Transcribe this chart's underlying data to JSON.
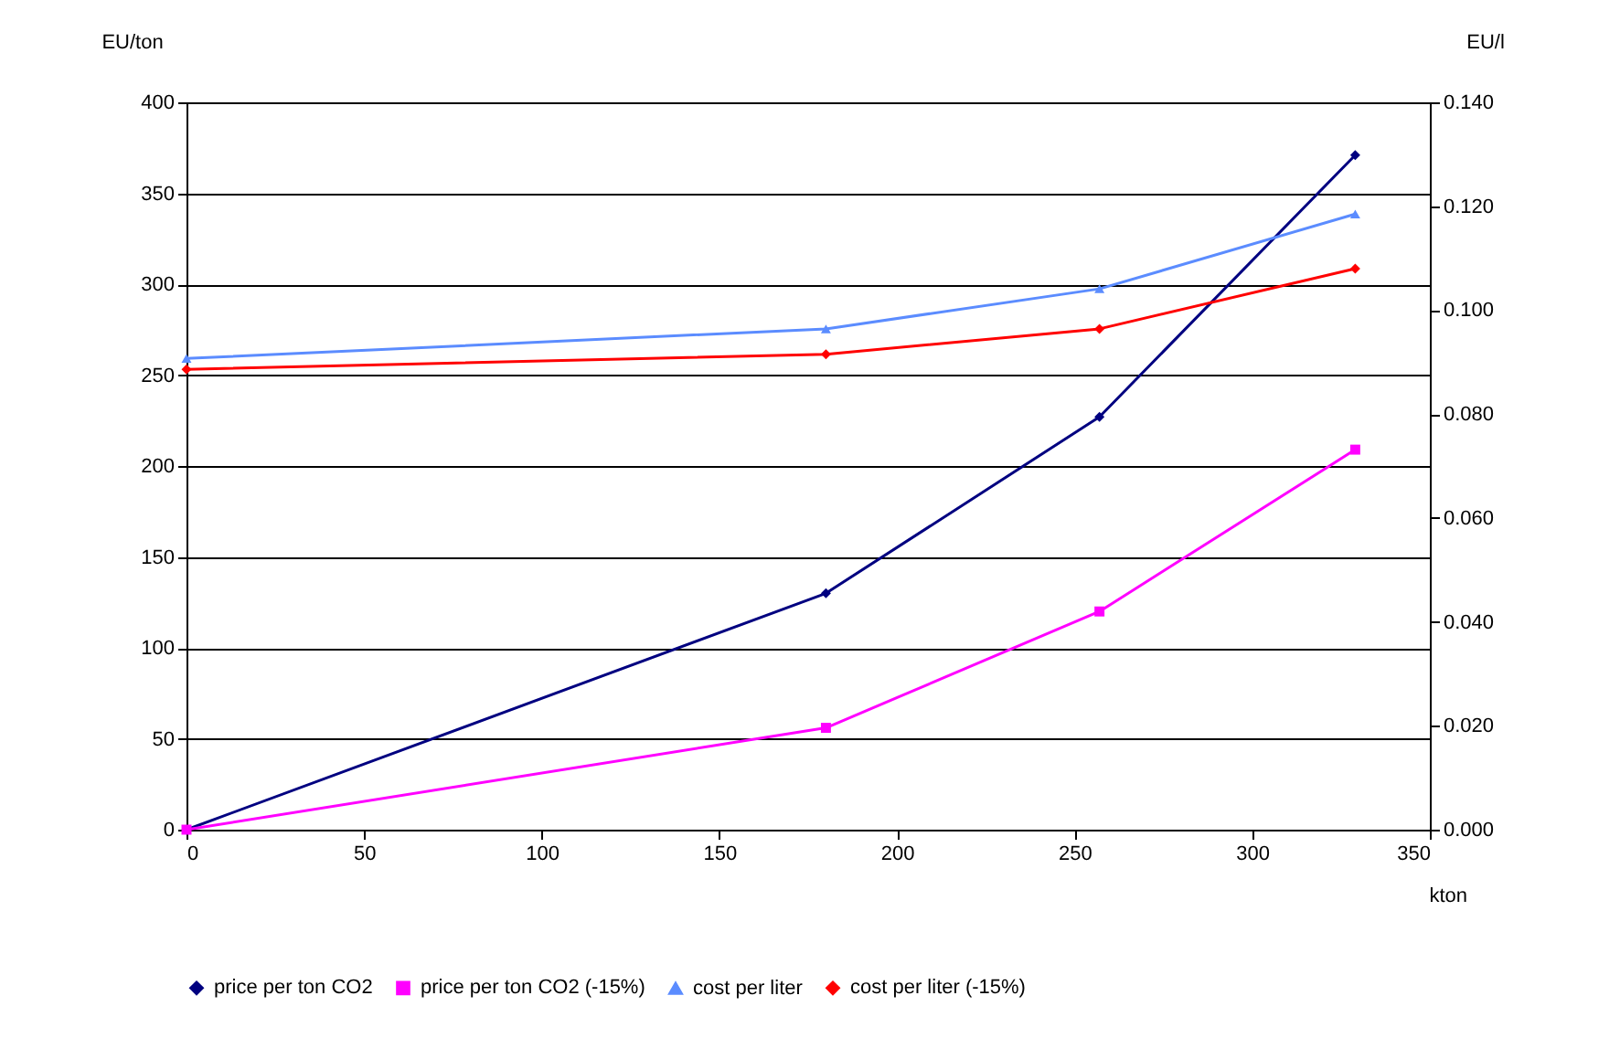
{
  "chart_data": {
    "type": "line",
    "xlabel": "kton",
    "ylabel": "EU/ton",
    "y2label": "EU/l",
    "x": [
      0,
      180,
      257,
      329
    ],
    "series": [
      {
        "name": "price per ton CO2",
        "color": "#000080",
        "marker": "diamond",
        "values": [
          0,
          130,
          227,
          371
        ]
      },
      {
        "name": "price per ton CO2 (-15%)",
        "color": "#ff00ff",
        "marker": "square",
        "values": [
          0,
          56,
          120,
          209
        ]
      },
      {
        "name": "cost per liter",
        "color": "#5b8cff",
        "marker": "triangle",
        "axis": "y2",
        "values": [
          0.0907,
          0.0964,
          0.1041,
          0.1185
        ]
      },
      {
        "name": "cost per liter (-15%)",
        "color": "#ff0000",
        "marker": "diamond",
        "axis": "y2",
        "values": [
          0.0886,
          0.0915,
          0.0964,
          0.108
        ]
      }
    ],
    "xlim": [
      0,
      350
    ],
    "xticks": [
      0,
      50,
      100,
      150,
      200,
      250,
      300,
      350
    ],
    "ylim": [
      0,
      400
    ],
    "yticks": [
      0,
      50,
      100,
      150,
      200,
      250,
      300,
      350,
      400
    ],
    "y2lim": [
      0,
      0.14
    ],
    "y2ticks": [
      {
        "value": 0,
        "label": "0.000"
      },
      {
        "value": 0.02,
        "label": "0.020"
      },
      {
        "value": 0.04,
        "label": "0.040"
      },
      {
        "value": 0.06,
        "label": "0.060"
      },
      {
        "value": 0.08,
        "label": "0.080"
      },
      {
        "value": 0.1,
        "label": "0.100"
      },
      {
        "value": 0.12,
        "label": "0.120"
      },
      {
        "value": 0.14,
        "label": "0.140"
      }
    ],
    "grid": "y",
    "legend": "bottom",
    "line_style": "solid"
  }
}
